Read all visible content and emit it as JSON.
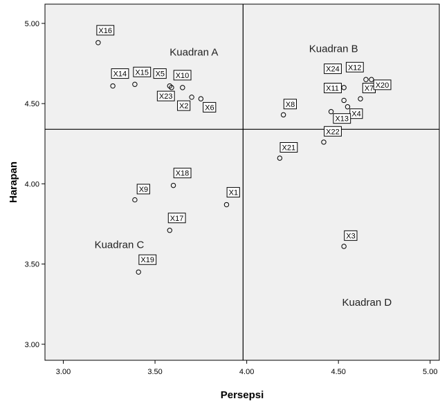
{
  "chart_data": {
    "type": "scatter",
    "title": "",
    "xlabel": "Persepsi",
    "ylabel": "Harapan",
    "xlim": [
      2.9,
      5.05
    ],
    "ylim": [
      2.9,
      5.12
    ],
    "x_ticks": [
      "3.00",
      "3.50",
      "4.00",
      "4.50",
      "5.00"
    ],
    "x_tick_values": [
      3.0,
      3.5,
      4.0,
      4.5,
      5.0
    ],
    "y_ticks": [
      "3.00",
      "3.50",
      "4.00",
      "4.50",
      "5.00"
    ],
    "y_tick_values": [
      3.0,
      3.5,
      4.0,
      4.5,
      5.0
    ],
    "reference_lines": {
      "x": 3.98,
      "y": 4.34
    },
    "grid": false,
    "quadrant_labels": [
      {
        "text": "Kuadran A",
        "x": 3.58,
        "y": 4.8
      },
      {
        "text": "Kuadran B",
        "x": 4.34,
        "y": 4.82
      },
      {
        "text": "Kuadran C",
        "x": 3.17,
        "y": 3.6
      },
      {
        "text": "Kuadran D",
        "x": 4.52,
        "y": 3.24
      }
    ],
    "points": [
      {
        "label": "X1",
        "x": 3.89,
        "y": 3.87,
        "lx": 3.9,
        "ly": 3.93
      },
      {
        "label": "X2",
        "x": 3.7,
        "y": 4.54,
        "lx": 3.63,
        "ly": 4.47
      },
      {
        "label": "X3",
        "x": 4.53,
        "y": 3.61,
        "lx": 4.54,
        "ly": 3.66
      },
      {
        "label": "X4",
        "x": 4.55,
        "y": 4.48,
        "lx": 4.57,
        "ly": 4.42
      },
      {
        "label": "X5",
        "x": 3.58,
        "y": 4.61,
        "lx": 3.5,
        "ly": 4.67
      },
      {
        "label": "X6",
        "x": 3.75,
        "y": 4.53,
        "lx": 3.77,
        "ly": 4.46
      },
      {
        "label": "X7",
        "x": 4.62,
        "y": 4.53,
        "lx": 4.64,
        "ly": 4.58
      },
      {
        "label": "X8",
        "x": 4.2,
        "y": 4.43,
        "lx": 4.21,
        "ly": 4.48
      },
      {
        "label": "X9",
        "x": 3.39,
        "y": 3.9,
        "lx": 3.41,
        "ly": 3.95
      },
      {
        "label": "X10",
        "x": 3.65,
        "y": 4.6,
        "lx": 3.61,
        "ly": 4.66
      },
      {
        "label": "X11",
        "x": 4.53,
        "y": 4.52,
        "lx": 4.43,
        "ly": 4.58
      },
      {
        "label": "X12",
        "x": 4.65,
        "y": 4.65,
        "lx": 4.55,
        "ly": 4.71
      },
      {
        "label": "X13",
        "x": 4.46,
        "y": 4.45,
        "lx": 4.48,
        "ly": 4.39
      },
      {
        "label": "X14",
        "x": 3.27,
        "y": 4.61,
        "lx": 3.27,
        "ly": 4.67
      },
      {
        "label": "X15",
        "x": 3.39,
        "y": 4.62,
        "lx": 3.39,
        "ly": 4.68
      },
      {
        "label": "X16",
        "x": 3.19,
        "y": 4.88,
        "lx": 3.19,
        "ly": 4.94
      },
      {
        "label": "X17",
        "x": 3.58,
        "y": 3.71,
        "lx": 3.58,
        "ly": 3.77
      },
      {
        "label": "X18",
        "x": 3.6,
        "y": 3.99,
        "lx": 3.61,
        "ly": 4.05
      },
      {
        "label": "X19",
        "x": 3.41,
        "y": 3.45,
        "lx": 3.42,
        "ly": 3.51
      },
      {
        "label": "X20",
        "x": 4.68,
        "y": 4.65,
        "lx": 4.7,
        "ly": 4.6
      },
      {
        "label": "X21",
        "x": 4.18,
        "y": 4.16,
        "lx": 4.19,
        "ly": 4.21
      },
      {
        "label": "X22",
        "x": 4.42,
        "y": 4.26,
        "lx": 4.43,
        "ly": 4.31
      },
      {
        "label": "X23",
        "x": 3.59,
        "y": 4.6,
        "lx": 3.52,
        "ly": 4.53
      },
      {
        "label": "X24",
        "x": 4.53,
        "y": 4.6,
        "lx": 4.43,
        "ly": 4.7
      }
    ]
  }
}
